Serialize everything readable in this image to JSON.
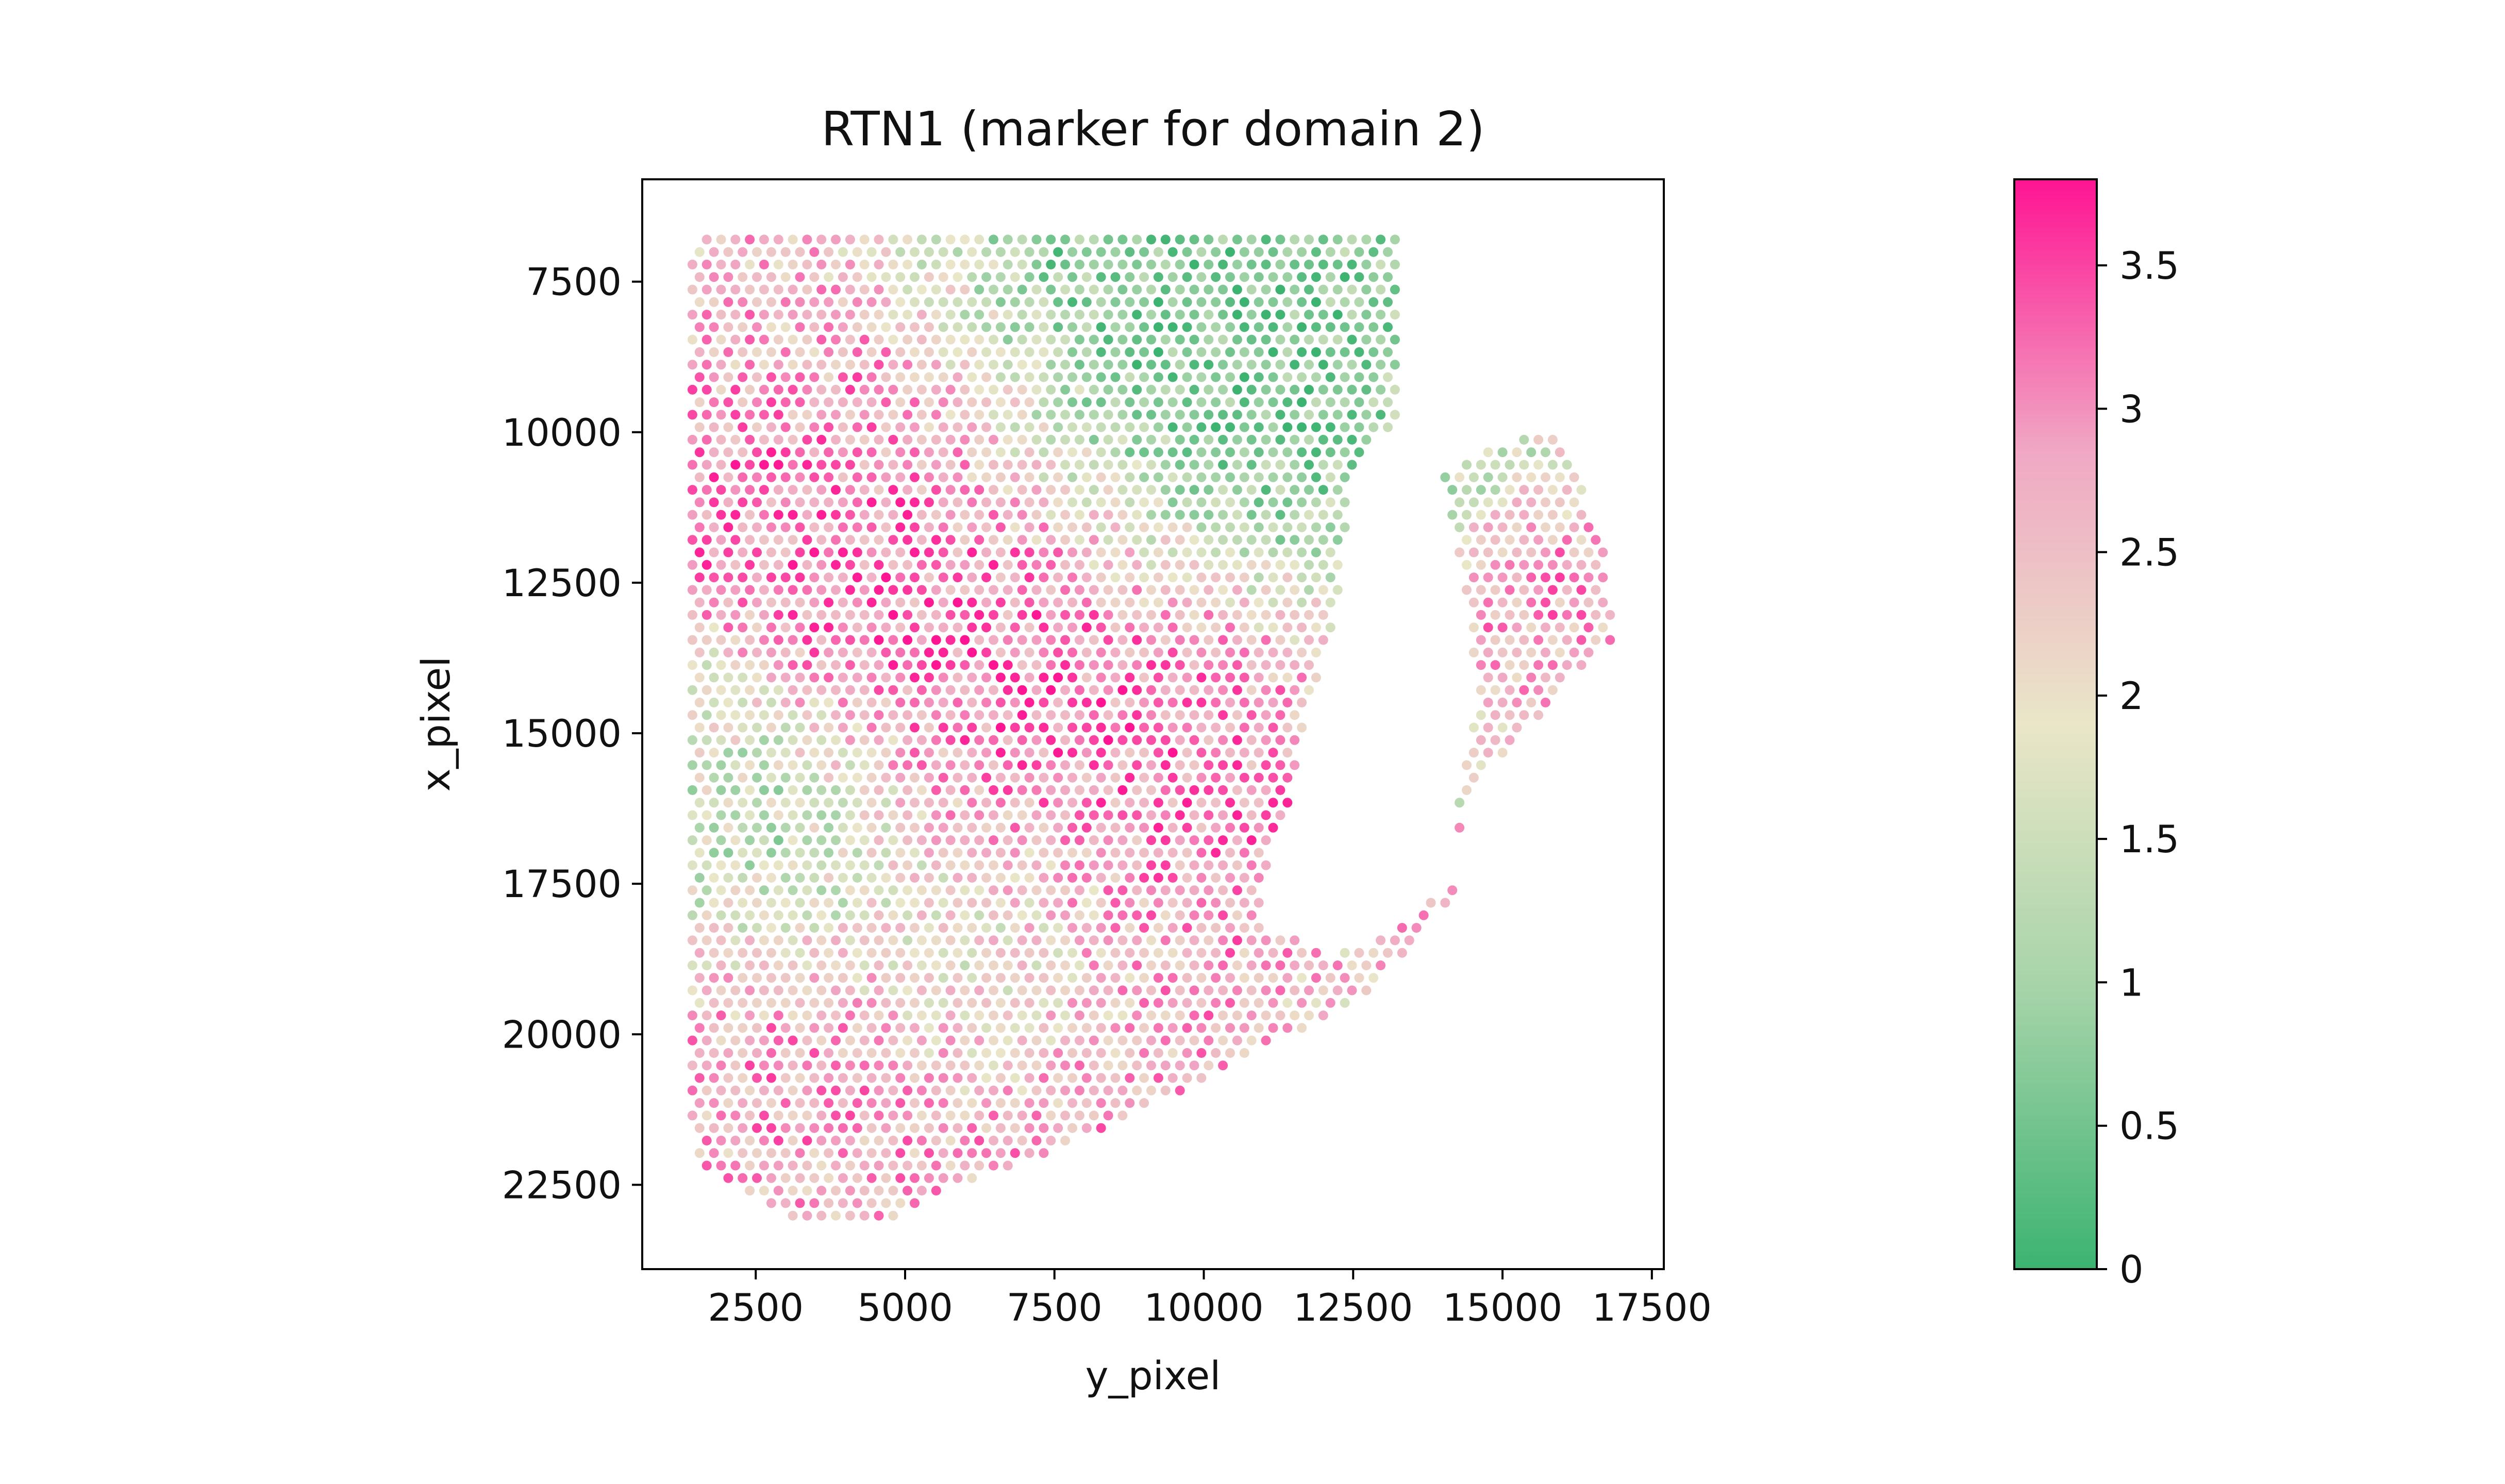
{
  "chart_data": {
    "type": "scatter",
    "title": "RTN1 (marker for domain 2)",
    "xlabel": "y_pixel",
    "ylabel": "x_pixel",
    "xlim": [
      600,
      17700
    ],
    "ylim": [
      23900,
      5800
    ],
    "y_inverted": true,
    "xticks": [
      2500,
      5000,
      7500,
      10000,
      12500,
      15000,
      17500
    ],
    "xtick_labels": [
      "2500",
      "5000",
      "7500",
      "10000",
      "12500",
      "15000",
      "17500"
    ],
    "yticks": [
      7500,
      10000,
      12500,
      15000,
      17500,
      20000,
      22500
    ],
    "ytick_labels": [
      "7500",
      "10000",
      "12500",
      "15000",
      "17500",
      "20000",
      "22500"
    ],
    "grid": false,
    "colorbar": {
      "label": "",
      "min": 0,
      "max": 3.8,
      "ticks": [
        0,
        0.5,
        1,
        1.5,
        2,
        2.5,
        3,
        3.5
      ],
      "tick_labels": [
        "0",
        "0.5",
        "1",
        "1.5",
        "2",
        "2.5",
        "3",
        "3.5"
      ],
      "colors": [
        "#3cb371",
        "#a4d3a8",
        "#eae6c8",
        "#f0a8c4",
        "#ff1493"
      ]
    },
    "spot_spacing": 240,
    "region": {
      "outline": [
        [
          1450,
          6800
        ],
        [
          13300,
          6800
        ],
        [
          13300,
          10000
        ],
        [
          12700,
          10200
        ],
        [
          12450,
          10900
        ],
        [
          12350,
          12000
        ],
        [
          12150,
          13200
        ],
        [
          11700,
          14800
        ],
        [
          11550,
          15800
        ],
        [
          11200,
          16800
        ],
        [
          10900,
          18100
        ],
        [
          12000,
          18700
        ],
        [
          13150,
          18300
        ],
        [
          14150,
          17500
        ],
        [
          14250,
          16200
        ],
        [
          14550,
          14500
        ],
        [
          14450,
          13000
        ],
        [
          14200,
          11600
        ],
        [
          13900,
          10700
        ],
        [
          14600,
          10300
        ],
        [
          15750,
          10000
        ],
        [
          16250,
          10600
        ],
        [
          16650,
          11800
        ],
        [
          16900,
          13400
        ],
        [
          16250,
          14000
        ],
        [
          15550,
          14800
        ],
        [
          14700,
          15700
        ],
        [
          14300,
          16500
        ],
        [
          14150,
          17700
        ],
        [
          13700,
          18300
        ],
        [
          12700,
          19400
        ],
        [
          11200,
          20100
        ],
        [
          9100,
          21200
        ],
        [
          7400,
          21950
        ],
        [
          6100,
          22400
        ],
        [
          5350,
          22700
        ],
        [
          4800,
          23100
        ],
        [
          3850,
          23100
        ],
        [
          2900,
          23000
        ],
        [
          1600,
          22200
        ],
        [
          1400,
          21600
        ],
        [
          1350,
          13500
        ],
        [
          1400,
          7000
        ]
      ],
      "hole": [
        [
          13100,
          14200
        ],
        [
          13750,
          14350
        ],
        [
          13900,
          15300
        ],
        [
          13600,
          16100
        ],
        [
          12800,
          16400
        ],
        [
          12500,
          15800
        ],
        [
          12550,
          14900
        ]
      ]
    },
    "hotspots": [
      {
        "x": 4000,
        "y": 11200,
        "r": 3600,
        "v": 3.3
      },
      {
        "x": 7000,
        "y": 14200,
        "r": 3400,
        "v": 3.4
      },
      {
        "x": 8400,
        "y": 17000,
        "r": 3000,
        "v": 3.2
      },
      {
        "x": 7600,
        "y": 20700,
        "r": 2700,
        "v": 3.0
      },
      {
        "x": 3400,
        "y": 20300,
        "r": 2700,
        "v": 3.0
      },
      {
        "x": 15200,
        "y": 12900,
        "r": 2000,
        "v": 3.0
      },
      {
        "x": 13900,
        "y": 17800,
        "r": 1400,
        "v": 2.6
      },
      {
        "x": 10500,
        "y": 15600,
        "r": 2200,
        "v": 3.1
      },
      {
        "x": 3000,
        "y": 8200,
        "r": 1500,
        "v": 2.6
      },
      {
        "x": 3000,
        "y": 16700,
        "r": 2200,
        "v": 0.9
      },
      {
        "x": 9800,
        "y": 8300,
        "r": 4000,
        "v": 0.3
      },
      {
        "x": 6600,
        "y": 18500,
        "r": 2500,
        "v": 1.2
      },
      {
        "x": 13200,
        "y": 15100,
        "r": 1100,
        "v": 0.2
      },
      {
        "x": 14200,
        "y": 10400,
        "r": 1200,
        "v": 1.0
      },
      {
        "x": 1500,
        "y": 15000,
        "r": 1500,
        "v": 1.5
      }
    ],
    "base_value": 2.0,
    "variation": 0.75
  }
}
